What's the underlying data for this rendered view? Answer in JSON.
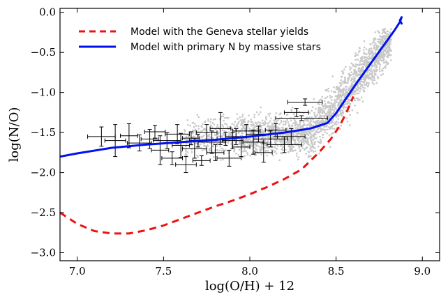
{
  "chart_data": {
    "type": "scatter",
    "xlabel": "log(O/H) + 12",
    "ylabel": "log(N/O)",
    "xlim": [
      6.9,
      9.1
    ],
    "ylim": [
      -3.1,
      0.05
    ],
    "xticks": [
      7.0,
      7.5,
      8.0,
      8.5,
      9.0
    ],
    "xtick_labels": [
      "7.0",
      "7.5",
      "8.0",
      "8.5",
      "9.0"
    ],
    "yticks": [
      0.0,
      -0.5,
      -1.0,
      -1.5,
      -2.0,
      -2.5,
      -3.0
    ],
    "ytick_labels": [
      "0.0",
      "−0.5",
      "−1.0",
      "−1.5",
      "−2.0",
      "−2.5",
      "−3.0"
    ],
    "grid": false,
    "legend_position": "top-left",
    "colors": {
      "geneva": "#ee1111",
      "primary": "#0011ee",
      "cloud": "#c8c8c8",
      "errorbars": "#000000"
    },
    "series": [
      {
        "name": "Model with the Geneva stellar yields",
        "style": "dashed",
        "color": "#ee1111",
        "x": [
          6.9,
          7.0,
          7.1,
          7.2,
          7.3,
          7.4,
          7.5,
          7.6,
          7.7,
          7.8,
          7.9,
          8.0,
          8.1,
          8.2,
          8.3,
          8.4,
          8.47,
          8.52,
          8.56,
          8.6
        ],
        "y": [
          -2.5,
          -2.64,
          -2.73,
          -2.76,
          -2.76,
          -2.72,
          -2.66,
          -2.58,
          -2.5,
          -2.42,
          -2.35,
          -2.27,
          -2.18,
          -2.08,
          -1.96,
          -1.75,
          -1.58,
          -1.42,
          -1.25,
          -1.05
        ]
      },
      {
        "name": "Model with primary N by massive stars",
        "style": "solid",
        "color": "#0011ee",
        "x": [
          6.9,
          7.0,
          7.2,
          7.4,
          7.6,
          7.8,
          8.0,
          8.2,
          8.35,
          8.45,
          8.5,
          8.55,
          8.62,
          8.7,
          8.78,
          8.84,
          8.87,
          8.88,
          8.87,
          8.88
        ],
        "y": [
          -1.8,
          -1.76,
          -1.69,
          -1.65,
          -1.62,
          -1.59,
          -1.55,
          -1.5,
          -1.45,
          -1.38,
          -1.26,
          -1.1,
          -0.88,
          -0.64,
          -0.4,
          -0.22,
          -0.12,
          -0.06,
          -0.1,
          -0.14
        ]
      },
      {
        "name": "",
        "kind": "error_points",
        "color": "#000000",
        "points": [
          {
            "x": 7.14,
            "y": -1.55,
            "xe": 0.08,
            "ye": 0.12
          },
          {
            "x": 7.22,
            "y": -1.6,
            "xe": 0.06,
            "ye": 0.2
          },
          {
            "x": 7.3,
            "y": -1.54,
            "xe": 0.05,
            "ye": 0.15
          },
          {
            "x": 7.36,
            "y": -1.63,
            "xe": 0.07,
            "ye": 0.1
          },
          {
            "x": 7.42,
            "y": -1.58,
            "xe": 0.05,
            "ye": 0.12
          },
          {
            "x": 7.45,
            "y": -1.49,
            "xe": 0.06,
            "ye": 0.08
          },
          {
            "x": 7.48,
            "y": -1.72,
            "xe": 0.05,
            "ye": 0.18
          },
          {
            "x": 7.52,
            "y": -1.6,
            "xe": 0.08,
            "ye": 0.1
          },
          {
            "x": 7.55,
            "y": -1.82,
            "xe": 0.06,
            "ye": 0.08
          },
          {
            "x": 7.58,
            "y": -1.52,
            "xe": 0.07,
            "ye": 0.12
          },
          {
            "x": 7.6,
            "y": -1.66,
            "xe": 0.05,
            "ye": 0.15
          },
          {
            "x": 7.63,
            "y": -1.9,
            "xe": 0.06,
            "ye": 0.1
          },
          {
            "x": 7.66,
            "y": -1.57,
            "xe": 0.05,
            "ye": 0.08
          },
          {
            "x": 7.68,
            "y": -1.7,
            "xe": 0.07,
            "ye": 0.12
          },
          {
            "x": 7.72,
            "y": -1.85,
            "xe": 0.05,
            "ye": 0.06
          },
          {
            "x": 7.75,
            "y": -1.5,
            "xe": 0.06,
            "ye": 0.1
          },
          {
            "x": 7.78,
            "y": -1.62,
            "xe": 0.08,
            "ye": 0.14
          },
          {
            "x": 7.8,
            "y": -1.75,
            "xe": 0.05,
            "ye": 0.1
          },
          {
            "x": 7.83,
            "y": -1.45,
            "xe": 0.06,
            "ye": 0.2
          },
          {
            "x": 7.86,
            "y": -1.58,
            "xe": 0.05,
            "ye": 0.08
          },
          {
            "x": 7.88,
            "y": -1.82,
            "xe": 0.07,
            "ye": 0.1
          },
          {
            "x": 7.92,
            "y": -1.55,
            "xe": 0.06,
            "ye": 0.1
          },
          {
            "x": 7.95,
            "y": -1.68,
            "xe": 0.05,
            "ye": 0.12
          },
          {
            "x": 7.98,
            "y": -1.48,
            "xe": 0.08,
            "ye": 0.08
          },
          {
            "x": 8.02,
            "y": -1.62,
            "xe": 0.06,
            "ye": 0.15
          },
          {
            "x": 8.05,
            "y": -1.52,
            "xe": 0.07,
            "ye": 0.1
          },
          {
            "x": 8.08,
            "y": -1.75,
            "xe": 0.05,
            "ye": 0.12
          },
          {
            "x": 8.12,
            "y": -1.58,
            "xe": 0.1,
            "ye": 0.1
          },
          {
            "x": 8.15,
            "y": -1.47,
            "xe": 0.06,
            "ye": 0.08
          },
          {
            "x": 8.2,
            "y": -1.65,
            "xe": 0.1,
            "ye": 0.1
          },
          {
            "x": 8.24,
            "y": -1.55,
            "xe": 0.08,
            "ye": 0.1
          },
          {
            "x": 8.3,
            "y": -1.32,
            "xe": 0.15,
            "ye": 0.03
          },
          {
            "x": 8.27,
            "y": -1.25,
            "xe": 0.07,
            "ye": 0.05
          },
          {
            "x": 8.32,
            "y": -1.12,
            "xe": 0.1,
            "ye": 0.04
          },
          {
            "x": 7.9,
            "y": -1.6,
            "xe": 0.06,
            "ye": 0.1
          },
          {
            "x": 7.7,
            "y": -1.6,
            "xe": 0.05,
            "ye": 0.08
          }
        ]
      }
    ]
  }
}
